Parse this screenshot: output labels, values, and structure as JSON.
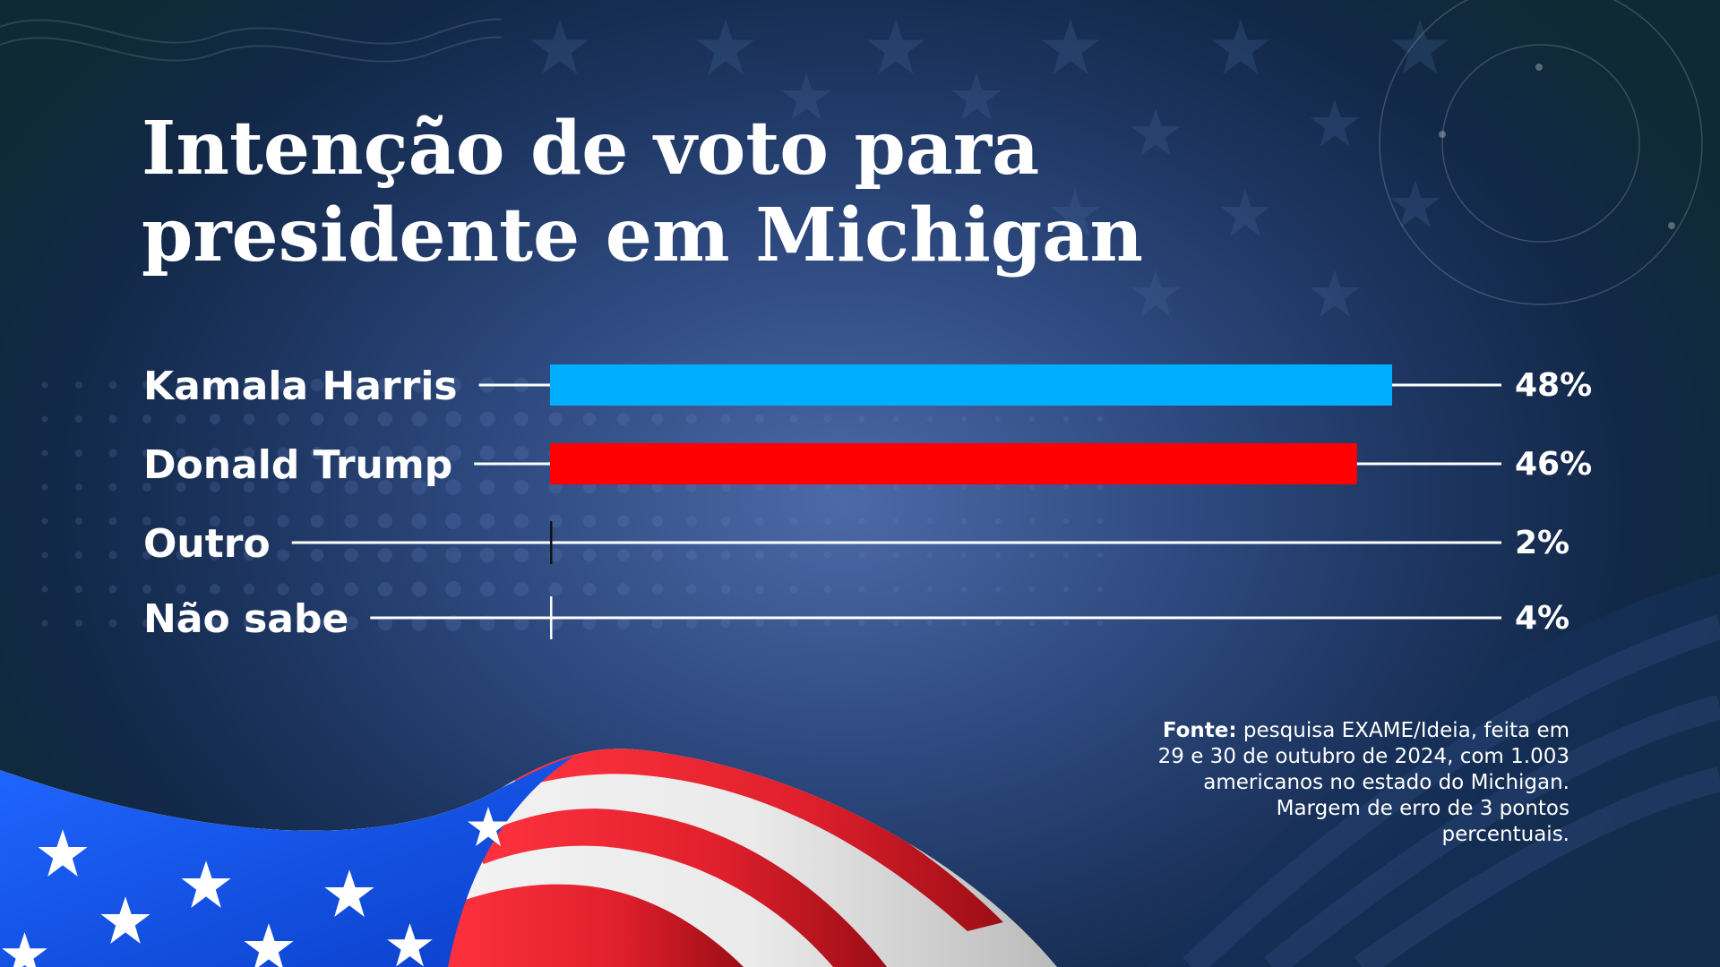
{
  "title": {
    "line1": "Intenção de voto para",
    "line2": "presidente em Michigan"
  },
  "colors": {
    "harris": "#00aeff",
    "trump": "#ff0000",
    "axis_line": "#ffffff"
  },
  "chart_data": {
    "type": "bar",
    "orientation": "horizontal",
    "categories": [
      "Kamala Harris",
      "Donald Trump",
      "Outro",
      "Não sabe"
    ],
    "values": [
      48,
      46,
      2,
      4
    ],
    "value_labels": [
      "48%",
      "46%",
      "2%",
      "4%"
    ],
    "colors": [
      "#00aeff",
      "#ff0000",
      "#ffffff",
      "#ffffff"
    ],
    "xlim": [
      0,
      48
    ],
    "title": "Intenção de voto para presidente em Michigan",
    "xlabel": "",
    "ylabel": "",
    "grid": false,
    "legend": "none"
  },
  "note": {
    "source_label": "Fonte:",
    "source_text": " pesquisa EXAME/Ideia, feita em 29 e 30 de outubro de 2024, com 1.003 americanos no estado do Michigan. Margem de erro de 3 pontos percentuais."
  }
}
